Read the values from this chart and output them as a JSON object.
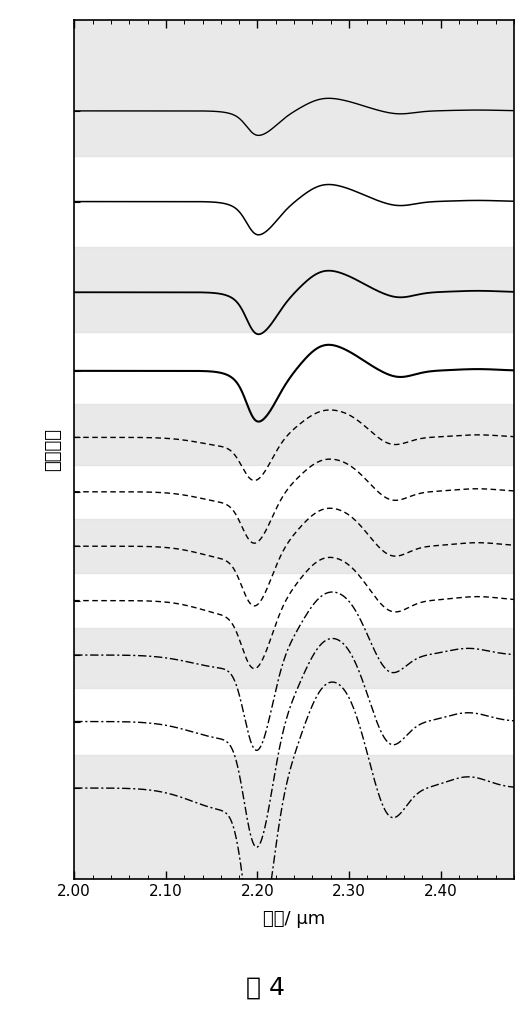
{
  "xlabel": "波长/ μm",
  "ylabel": "坐标偏移",
  "xlabel_fontsize": 13,
  "ylabel_fontsize": 13,
  "xmin": 2.0,
  "xmax": 2.48,
  "caption": "图 4",
  "caption_fontsize": 18,
  "xticks": [
    2.0,
    2.1,
    2.2,
    2.3,
    2.4
  ],
  "background_color": "#ffffff",
  "line_color": "#000000",
  "curve_offsets": [
    9.5,
    8.0,
    6.5,
    5.2,
    4.1,
    3.2,
    2.3,
    1.4,
    0.5,
    -0.6,
    -1.7
  ],
  "band_height": 1.2,
  "line_styles": [
    "solid",
    "solid",
    "solid",
    "solid",
    "dotted",
    "dotted",
    "dotted",
    "dotted",
    "dashdot",
    "dashdot",
    "dashdot"
  ],
  "line_widths": [
    1.0,
    1.1,
    1.3,
    1.5,
    1.0,
    1.0,
    1.0,
    1.0,
    1.0,
    1.0,
    1.0
  ],
  "amplitudes": [
    0.28,
    0.38,
    0.48,
    0.58,
    0.52,
    0.62,
    0.72,
    0.82,
    1.1,
    1.45,
    1.85
  ],
  "gray_band_color": "#e0e0e0",
  "ylim_min": -3.2,
  "ylim_max": 11.0
}
